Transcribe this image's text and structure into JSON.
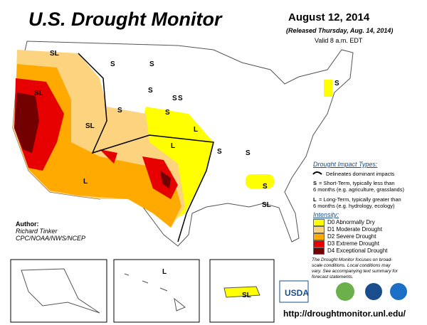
{
  "header": {
    "title": "U.S. Drought Monitor",
    "date": "August 12, 2014",
    "released": "(Released Thursday, Aug. 14, 2014)",
    "valid": "Valid 8 a.m. EDT"
  },
  "author": {
    "label": "Author:",
    "name": "Richard Tinker",
    "org": "CPC/NOAA/NWS/NCEP"
  },
  "legend": {
    "impact_title": "Drought Impact Types:",
    "delineates": "Delineates dominant impacts",
    "short": {
      "symbol": "S",
      "lines": [
        "= Short-Term, typically less than",
        "6 months (e.g. agriculture, grasslands)"
      ]
    },
    "long": {
      "symbol": "L",
      "lines": [
        "= Long-Term, typically greater than",
        "6 months (e.g. hydrology, ecology)"
      ]
    },
    "intensity_title": "Intensity:",
    "levels": [
      {
        "label": "D0 Abnormally Dry",
        "color": "#ffff00"
      },
      {
        "label": "D1 Moderate Drought",
        "color": "#fcd37f"
      },
      {
        "label": "D2 Severe Drought",
        "color": "#ffaa00"
      },
      {
        "label": "D3 Extreme Drought",
        "color": "#e60000"
      },
      {
        "label": "D4 Exceptional Drought",
        "color": "#730000"
      }
    ],
    "note": [
      "The Drought Monitor focuses on broad-",
      "scale conditions. Local conditions may",
      "vary. See accompanying text summary for",
      "forecast statements."
    ]
  },
  "map_labels": [
    "SL",
    "S",
    "SL",
    "S",
    "S",
    "S",
    "SL",
    "L",
    "S",
    "S",
    "S",
    "L",
    "S",
    "S",
    "S",
    "S",
    "L",
    "SL",
    "L",
    "SL"
  ],
  "logos": {
    "usda": "USDA"
  },
  "url": "http://droughtmonitor.unl.edu/"
}
